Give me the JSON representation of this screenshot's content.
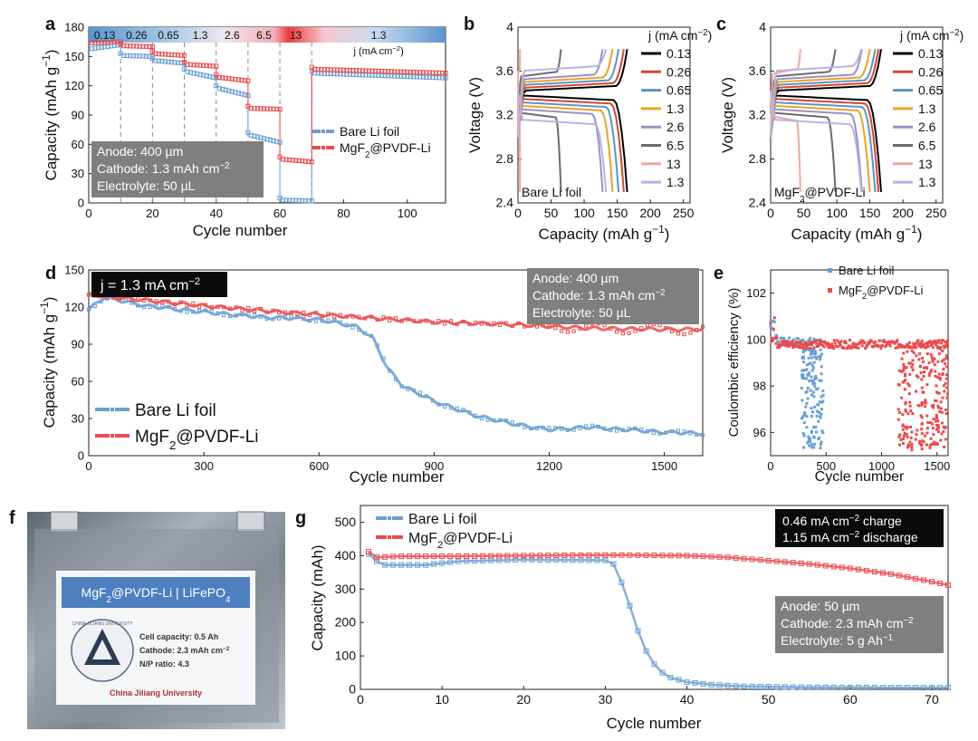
{
  "colors": {
    "blue": "#6a9ed3",
    "red": "#ea4b4b",
    "blue_light": "#b7d1ec",
    "red_light": "#f5aaaa",
    "box_gray": "#7f7f7f",
    "box_black": "#0a0a0a"
  },
  "panels": {
    "a": {
      "label": "a",
      "xlabel": "Cycle number",
      "ylabel_html": "Capacity (mAh g<tspan baseline-shift='super' font-size='11'>−1</tspan>)",
      "ylabel": "Capacity (mAh g−1)",
      "legend": [
        "Bare Li foil",
        "MgF2@PVDF-Li"
      ],
      "legend_display": [
        "Bare Li foil",
        "MgF<tspan baseline-shift='sub' font-size='11'>2</tspan>@PVDF-Li"
      ],
      "info": [
        "Anode: 400 µm",
        "Cathode: 1.3 mAh cm−2",
        "Electrolyte: 50 µL"
      ],
      "rate_bar": [
        "0.13",
        "0.26",
        "0.65",
        "1.3",
        "2.6",
        "6.5",
        "13",
        "1.3"
      ],
      "rate_unit": "j (mA cm−2)"
    },
    "b": {
      "label": "b",
      "note": "Bare Li foil",
      "legend_title": "j (mA cm−2)",
      "xlabel": "Capacity (mAh g−1)",
      "ylabel": "Voltage (V)"
    },
    "c": {
      "label": "c",
      "note": "MgF2@PVDF-Li",
      "legend_title": "j (mA cm−2)",
      "xlabel": "Capacity (mAh g−1)",
      "ylabel": "Voltage (V)"
    },
    "d": {
      "label": "d",
      "current_badge": "j = 1.3 mA cm−2",
      "info": [
        "Anode: 400 µm",
        "Cathode: 1.3 mAh cm−2",
        "Electrolyte: 50 µL"
      ],
      "legend": [
        "Bare Li foil",
        "MgF2@PVDF-Li"
      ],
      "xlabel": "Cycle number",
      "ylabel": "Capacity (mAh g−1)"
    },
    "e": {
      "label": "e",
      "legend": [
        "Bare Li foil",
        "MgF2@PVDF-Li"
      ],
      "xlabel": "Cycle number",
      "ylabel": "Coulombic efficiency (%)"
    },
    "f": {
      "label": "f",
      "pouch_title": "MgF2@PVDF-Li | LiFePO4",
      "specs": [
        "Cell capacity: 0.5 Ah",
        "Cathode: 2.3 mAh cm−2",
        "N/P ratio: 4.3"
      ],
      "university": "China Jiliang University",
      "seal_text": "CHINA JILIANG UNIVERSITY"
    },
    "g": {
      "label": "g",
      "legend": [
        "Bare Li foil",
        "MgF2@PVDF-Li"
      ],
      "protocol": [
        "0.46 mA cm−2 charge",
        "1.15 mA cm−2 discharge"
      ],
      "info": [
        "Anode: 50 µm",
        "Cathode: 2.3 mAh cm−2",
        "Electrolyte: 5 g Ah−1"
      ],
      "xlabel": "Cycle number",
      "ylabel": "Capacity (mAh)"
    }
  },
  "chart_data": [
    {
      "panel": "a",
      "type": "line",
      "xlim": [
        0,
        112
      ],
      "ylim": [
        0,
        180
      ],
      "xticks": [
        0,
        20,
        40,
        60,
        80,
        100
      ],
      "yticks": [
        0,
        30,
        60,
        90,
        120,
        150,
        180
      ],
      "rate_boundaries": [
        10,
        20,
        30,
        40,
        50,
        60,
        70
      ],
      "series": [
        {
          "name": "Bare Li foil",
          "color": "#6a9ed3",
          "segments": [
            [
              1,
              158,
              10,
              162
            ],
            [
              10,
              151,
              20,
              150
            ],
            [
              20,
              146,
              30,
              143
            ],
            [
              30,
              135,
              40,
              128
            ],
            [
              40,
              118,
              50,
              110
            ],
            [
              50,
              70,
              60,
              62
            ],
            [
              60,
              3,
              70,
              2
            ],
            [
              70,
              133,
              112,
              128
            ]
          ]
        },
        {
          "name": "MgF2@PVDF-Li",
          "color": "#ea4b4b",
          "segments": [
            [
              1,
              164,
              10,
              165
            ],
            [
              10,
              161,
              20,
              160
            ],
            [
              20,
              153,
              30,
              151
            ],
            [
              30,
              142,
              40,
              140
            ],
            [
              40,
              129,
              50,
              125
            ],
            [
              50,
              97,
              60,
              96
            ],
            [
              60,
              45,
              70,
              42
            ],
            [
              70,
              137,
              112,
              133
            ]
          ]
        }
      ]
    },
    {
      "panel": "b",
      "type": "line",
      "xlim": [
        0,
        260
      ],
      "ylim": [
        2.4,
        4.0
      ],
      "xticks": [
        0,
        50,
        100,
        150,
        200,
        250
      ],
      "yticks": [
        2.4,
        2.8,
        3.2,
        3.6,
        4.0
      ],
      "legend_title": "j (mA cm−2)",
      "series": [
        {
          "name": "0.13",
          "color": "#000000",
          "q": 165
        },
        {
          "name": "0.26",
          "color": "#d3462f",
          "q": 160
        },
        {
          "name": "0.65",
          "color": "#5d93c6",
          "q": 152
        },
        {
          "name": "1.3",
          "color": "#e7a32a",
          "q": 143
        },
        {
          "name": "2.6",
          "color": "#9a8fc6",
          "q": 128
        },
        {
          "name": "6.5",
          "color": "#6b6b6b",
          "q": 65
        },
        {
          "name": "13",
          "color": "#f0a89c",
          "q": 3
        },
        {
          "name": "1.3",
          "color": "#b8b3df",
          "q": 133
        }
      ]
    },
    {
      "panel": "c",
      "type": "line",
      "xlim": [
        0,
        260
      ],
      "ylim": [
        2.4,
        4.0
      ],
      "xticks": [
        0,
        50,
        100,
        150,
        200,
        250
      ],
      "yticks": [
        2.4,
        2.8,
        3.2,
        3.6,
        4.0
      ],
      "legend_title": "j (mA cm−2)",
      "series": [
        {
          "name": "0.13",
          "color": "#000000",
          "q": 167
        },
        {
          "name": "0.26",
          "color": "#d3462f",
          "q": 163
        },
        {
          "name": "0.65",
          "color": "#5d93c6",
          "q": 158
        },
        {
          "name": "1.3",
          "color": "#e7a32a",
          "q": 150
        },
        {
          "name": "2.6",
          "color": "#9a8fc6",
          "q": 138
        },
        {
          "name": "6.5",
          "color": "#6b6b6b",
          "q": 98
        },
        {
          "name": "13",
          "color": "#f0a89c",
          "q": 45
        },
        {
          "name": "1.3",
          "color": "#b8b3df",
          "q": 137
        }
      ]
    },
    {
      "panel": "d",
      "type": "line",
      "xlim": [
        0,
        1600
      ],
      "ylim": [
        0,
        150
      ],
      "xticks": [
        0,
        300,
        600,
        900,
        1200,
        1500
      ],
      "yticks": [
        0,
        30,
        60,
        90,
        120,
        150
      ],
      "series": [
        {
          "name": "Bare Li foil",
          "color": "#6a9ed3",
          "points": [
            [
              0,
              118
            ],
            [
              40,
              128
            ],
            [
              150,
              121
            ],
            [
              300,
              116
            ],
            [
              450,
              112
            ],
            [
              600,
              110
            ],
            [
              700,
              104
            ],
            [
              740,
              95
            ],
            [
              780,
              70
            ],
            [
              820,
              56
            ],
            [
              900,
              44
            ],
            [
              1000,
              33
            ],
            [
              1100,
              26
            ],
            [
              1200,
              21
            ],
            [
              1300,
              23
            ],
            [
              1400,
              21
            ],
            [
              1500,
              19
            ],
            [
              1600,
              18
            ]
          ]
        },
        {
          "name": "MgF2@PVDF-Li",
          "color": "#ea4b4b",
          "points": [
            [
              0,
              130
            ],
            [
              100,
              127
            ],
            [
              300,
              121
            ],
            [
              500,
              116
            ],
            [
              700,
              112
            ],
            [
              900,
              108
            ],
            [
              1100,
              106
            ],
            [
              1300,
              103
            ],
            [
              1500,
              102
            ],
            [
              1600,
              102
            ]
          ]
        }
      ]
    },
    {
      "panel": "e",
      "type": "scatter",
      "xlim": [
        0,
        1600
      ],
      "ylim": [
        95,
        103
      ],
      "xticks": [
        0,
        500,
        1000,
        1500
      ],
      "yticks": [
        96,
        98,
        100,
        102
      ],
      "series": [
        {
          "name": "Bare Li foil",
          "color": "#6a9ed3",
          "stable": [
            0,
            450,
            99.9
          ],
          "scatter_range": [
            280,
            480,
            95.3,
            99.6
          ]
        },
        {
          "name": "MgF2@PVDF-Li",
          "color": "#ea4b4b",
          "stable": [
            0,
            1600,
            99.8
          ],
          "scatter_range": [
            1150,
            1600,
            95.2,
            99.8
          ]
        }
      ]
    },
    {
      "panel": "g",
      "type": "line",
      "xlim": [
        0,
        72
      ],
      "ylim": [
        0,
        550
      ],
      "xticks": [
        0,
        10,
        20,
        30,
        40,
        50,
        60,
        70
      ],
      "yticks": [
        0,
        100,
        200,
        300,
        400,
        500
      ],
      "series": [
        {
          "name": "Bare Li foil",
          "color": "#6a9ed3",
          "points": [
            [
              1,
              405
            ],
            [
              2,
              383
            ],
            [
              3,
              372
            ],
            [
              5,
              372
            ],
            [
              8,
              372
            ],
            [
              12,
              383
            ],
            [
              20,
              388
            ],
            [
              30,
              386
            ],
            [
              31,
              375
            ],
            [
              32,
              320
            ],
            [
              33,
              250
            ],
            [
              34,
              175
            ],
            [
              35,
              115
            ],
            [
              36,
              75
            ],
            [
              37,
              50
            ],
            [
              38,
              35
            ],
            [
              40,
              22
            ],
            [
              43,
              14
            ],
            [
              47,
              9
            ],
            [
              55,
              6
            ],
            [
              72,
              5
            ]
          ]
        },
        {
          "name": "MgF2@PVDF-Li",
          "color": "#ea4b4b",
          "points": [
            [
              1,
              412
            ],
            [
              2,
              395
            ],
            [
              5,
              398
            ],
            [
              10,
              398
            ],
            [
              20,
              400
            ],
            [
              30,
              402
            ],
            [
              40,
              400
            ],
            [
              45,
              395
            ],
            [
              50,
              385
            ],
            [
              55,
              375
            ],
            [
              60,
              362
            ],
            [
              65,
              345
            ],
            [
              70,
              322
            ],
            [
              72,
              312
            ]
          ]
        }
      ]
    }
  ]
}
